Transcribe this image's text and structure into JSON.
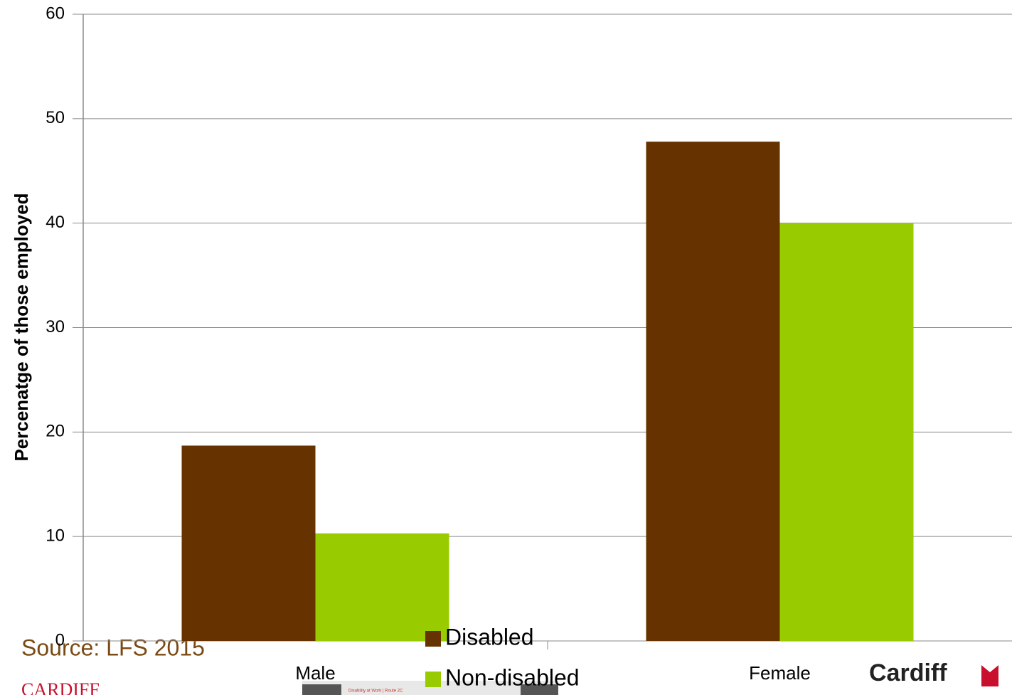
{
  "chart_data": {
    "type": "bar",
    "y_label": "Percenatge of those employed",
    "categories": [
      "Male",
      "Female"
    ],
    "series": [
      {
        "name": "Disabled",
        "color": "#663300",
        "values": [
          18.7,
          47.8
        ]
      },
      {
        "name": "Non-disabled",
        "color": "#99cc00",
        "values": [
          10.3,
          40.0
        ]
      }
    ],
    "ylim": [
      0,
      60
    ],
    "yticks": [
      0,
      10,
      20,
      30,
      40,
      50,
      60
    ],
    "grid": true
  },
  "source": "Source: LFS 2015",
  "logo_left": "CARDIFF",
  "logo_right": "Cardiff",
  "thumbnail_caption": "Disability at Work | Route 2C"
}
